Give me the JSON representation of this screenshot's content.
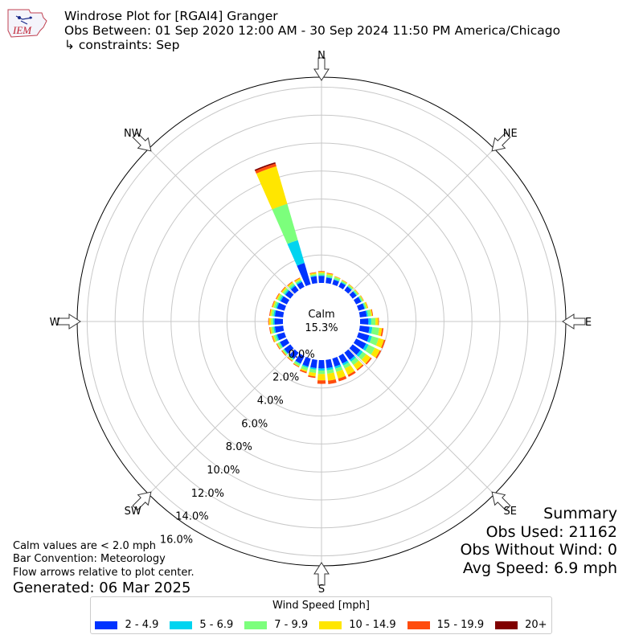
{
  "header": {
    "logo_text": "IEM",
    "title": "Windrose Plot for [RGAI4] Granger",
    "subtitle": "Obs Between: 01 Sep 2020 12:00 AM - 30 Sep 2024 11:50 PM America/Chicago",
    "constraints": "↳ constraints: Sep"
  },
  "summary": {
    "title": "Summary",
    "obs_used": "Obs Used: 21162",
    "obs_without_wind": "Obs Without Wind: 0",
    "avg_speed": "Avg Speed: 6.9 mph"
  },
  "footer": {
    "calm_note": "Calm values are < 2.0 mph",
    "bar_convention": "Bar Convention: Meteorology",
    "flow_note": "Flow arrows relative to plot center.",
    "generated": "Generated: 06 Mar 2025"
  },
  "legend": {
    "title": "Wind Speed [mph]",
    "items": [
      {
        "label": "2 - 4.9",
        "color": "#0033ff"
      },
      {
        "label": "5 - 6.9",
        "color": "#00d4f0"
      },
      {
        "label": "7 - 9.9",
        "color": "#7cff7c"
      },
      {
        "label": "10 - 14.9",
        "color": "#ffe600"
      },
      {
        "label": "15 - 19.9",
        "color": "#ff4c0d"
      },
      {
        "label": "20+",
        "color": "#800000"
      }
    ]
  },
  "chart_data": {
    "type": "windrose",
    "title": "Windrose Plot for [RGAI4] Granger",
    "calm_label": "Calm",
    "calm_percent": "15.3%",
    "radial_unit": "%",
    "radial_range": [
      0,
      18
    ],
    "radial_ticks": [
      0,
      2,
      4,
      6,
      8,
      10,
      12,
      14,
      16
    ],
    "radial_tick_labels": [
      "0.0%",
      "2.0%",
      "4.0%",
      "6.0%",
      "8.0%",
      "10.0%",
      "12.0%",
      "14.0%",
      "16.0%"
    ],
    "direction_labels": [
      "N",
      "NE",
      "E",
      "SE",
      "S",
      "SW",
      "W",
      "NW"
    ],
    "speed_bins": [
      "2 - 4.9",
      "5 - 6.9",
      "7 - 9.9",
      "10 - 14.9",
      "15 - 19.9",
      "20+"
    ],
    "bin_colors": [
      "#0033ff",
      "#00d4f0",
      "#7cff7c",
      "#ffe600",
      "#ff4c0d",
      "#800000"
    ],
    "sectors": [
      {
        "dir": 0,
        "cumulative": [
          0.5,
          0.55,
          0.7,
          0.8,
          0.85,
          0.85
        ]
      },
      {
        "dir": 10,
        "cumulative": [
          0.4,
          0.45,
          0.6,
          0.7,
          0.75,
          0.75
        ]
      },
      {
        "dir": 20,
        "cumulative": [
          0.35,
          0.4,
          0.55,
          0.6,
          0.62,
          0.62
        ]
      },
      {
        "dir": 30,
        "cumulative": [
          0.35,
          0.4,
          0.5,
          0.55,
          0.57,
          0.57
        ]
      },
      {
        "dir": 40,
        "cumulative": [
          0.35,
          0.4,
          0.5,
          0.55,
          0.57,
          0.57
        ]
      },
      {
        "dir": 50,
        "cumulative": [
          0.35,
          0.4,
          0.5,
          0.55,
          0.57,
          0.57
        ]
      },
      {
        "dir": 60,
        "cumulative": [
          0.4,
          0.45,
          0.55,
          0.6,
          0.62,
          0.62
        ]
      },
      {
        "dir": 70,
        "cumulative": [
          0.45,
          0.5,
          0.6,
          0.7,
          0.72,
          0.72
        ]
      },
      {
        "dir": 80,
        "cumulative": [
          0.5,
          0.6,
          0.8,
          0.9,
          0.95,
          0.95
        ]
      },
      {
        "dir": 90,
        "cumulative": [
          0.6,
          0.8,
          1.1,
          1.3,
          1.35,
          1.35
        ]
      },
      {
        "dir": 100,
        "cumulative": [
          0.7,
          0.9,
          1.4,
          1.6,
          1.7,
          1.7
        ]
      },
      {
        "dir": 110,
        "cumulative": [
          0.8,
          1.0,
          1.5,
          1.9,
          2.0,
          2.0
        ]
      },
      {
        "dir": 120,
        "cumulative": [
          0.8,
          1.0,
          1.5,
          1.9,
          2.0,
          2.0
        ]
      },
      {
        "dir": 130,
        "cumulative": [
          0.7,
          0.9,
          1.2,
          1.6,
          1.7,
          1.7
        ]
      },
      {
        "dir": 140,
        "cumulative": [
          0.65,
          0.8,
          1.1,
          1.5,
          1.6,
          1.6
        ]
      },
      {
        "dir": 150,
        "cumulative": [
          0.6,
          0.75,
          1.0,
          1.5,
          1.65,
          1.65
        ]
      },
      {
        "dir": 160,
        "cumulative": [
          0.6,
          0.75,
          1.0,
          1.5,
          1.7,
          1.7
        ]
      },
      {
        "dir": 170,
        "cumulative": [
          0.6,
          0.75,
          1.0,
          1.5,
          1.75,
          1.75
        ]
      },
      {
        "dir": 180,
        "cumulative": [
          0.6,
          0.75,
          1.0,
          1.45,
          1.7,
          1.7
        ]
      },
      {
        "dir": 190,
        "cumulative": [
          0.6,
          0.7,
          0.95,
          1.2,
          1.3,
          1.3
        ]
      },
      {
        "dir": 200,
        "cumulative": [
          0.6,
          0.7,
          0.9,
          1.0,
          1.1,
          1.1
        ]
      },
      {
        "dir": 210,
        "cumulative": [
          0.6,
          0.65,
          0.8,
          0.85,
          0.9,
          0.9
        ]
      },
      {
        "dir": 220,
        "cumulative": [
          0.55,
          0.6,
          0.7,
          0.75,
          0.8,
          0.8
        ]
      },
      {
        "dir": 230,
        "cumulative": [
          0.55,
          0.6,
          0.7,
          0.75,
          0.8,
          0.8
        ]
      },
      {
        "dir": 240,
        "cumulative": [
          0.55,
          0.6,
          0.75,
          0.8,
          0.85,
          0.85
        ]
      },
      {
        "dir": 250,
        "cumulative": [
          0.55,
          0.65,
          0.8,
          0.9,
          0.95,
          0.95
        ]
      },
      {
        "dir": 260,
        "cumulative": [
          0.6,
          0.7,
          0.85,
          0.95,
          1.0,
          1.0
        ]
      },
      {
        "dir": 270,
        "cumulative": [
          0.6,
          0.7,
          0.85,
          1.0,
          1.05,
          1.05
        ]
      },
      {
        "dir": 280,
        "cumulative": [
          0.6,
          0.7,
          0.85,
          0.95,
          1.0,
          1.0
        ]
      },
      {
        "dir": 290,
        "cumulative": [
          0.55,
          0.65,
          0.8,
          0.9,
          0.95,
          0.95
        ]
      },
      {
        "dir": 300,
        "cumulative": [
          0.5,
          0.6,
          0.75,
          0.85,
          0.9,
          0.9
        ]
      },
      {
        "dir": 310,
        "cumulative": [
          0.45,
          0.55,
          0.7,
          0.8,
          0.85,
          0.85
        ]
      },
      {
        "dir": 320,
        "cumulative": [
          0.4,
          0.5,
          0.65,
          0.75,
          0.8,
          0.8
        ]
      },
      {
        "dir": 330,
        "cumulative": [
          0.4,
          0.5,
          0.6,
          0.7,
          0.75,
          0.75
        ]
      },
      {
        "dir": 340,
        "cumulative": [
          1.6,
          3.3,
          6.0,
          8.8,
          9.0,
          9.1
        ]
      },
      {
        "dir": 350,
        "cumulative": [
          0.5,
          0.55,
          0.65,
          0.75,
          0.8,
          0.8
        ]
      }
    ]
  }
}
